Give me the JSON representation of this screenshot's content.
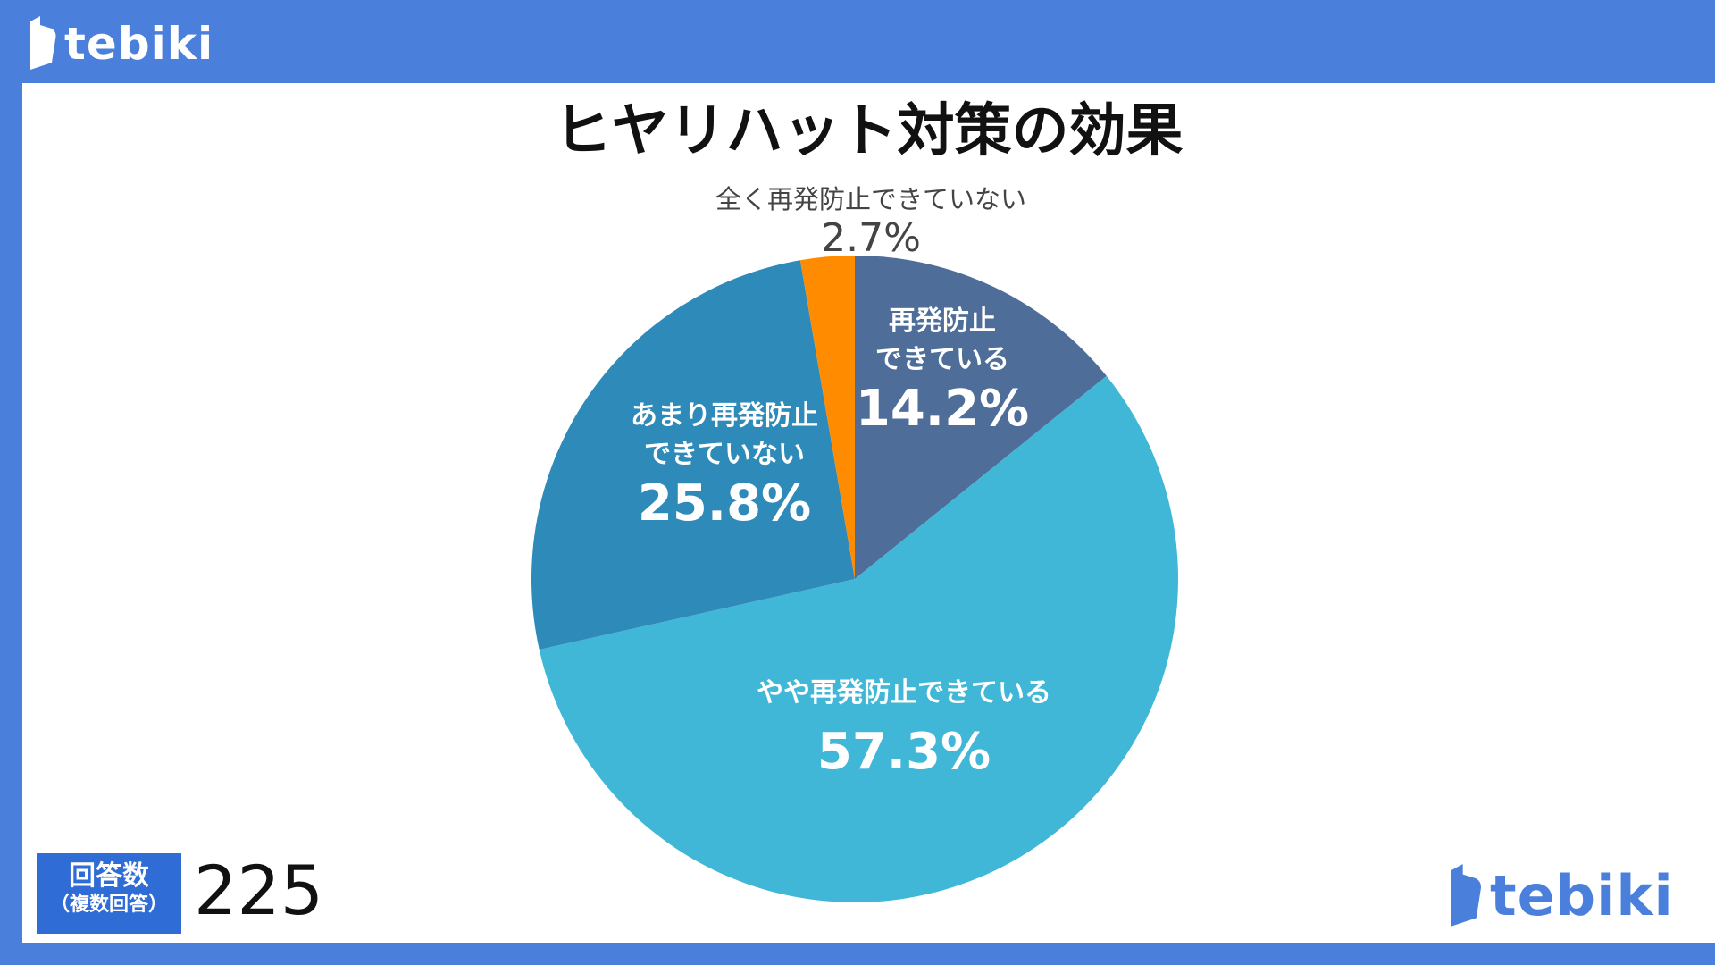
{
  "brand": {
    "name": "tebiki",
    "color": "#4a80dc",
    "logo_icon": "page-flag-icon"
  },
  "chart_data": {
    "type": "pie",
    "title": "ヒヤリハット対策の効果",
    "start": "12 o'clock",
    "direction": "clockwise",
    "slices": [
      {
        "label": "再発防止できている",
        "label_lines": [
          "再発防止",
          "できている"
        ],
        "value": 14.2,
        "display": "14.2%",
        "color": "#4e6e99"
      },
      {
        "label": "やや再発防止できている",
        "label_lines": [
          "やや再発防止できている"
        ],
        "value": 57.3,
        "display": "57.3%",
        "color": "#41b7d7"
      },
      {
        "label": "あまり再発防止できていない",
        "label_lines": [
          "あまり再発防止",
          "できていない"
        ],
        "value": 25.8,
        "display": "25.8%",
        "color": "#2e8ab9"
      },
      {
        "label": "全く再発防止できていない",
        "label_lines": [
          "全く再発防止できていない"
        ],
        "value": 2.7,
        "display": "2.7%",
        "color": "#ff8c00"
      }
    ]
  },
  "responses": {
    "label": "回答数",
    "sublabel": "（複数回答）",
    "count": "225"
  }
}
